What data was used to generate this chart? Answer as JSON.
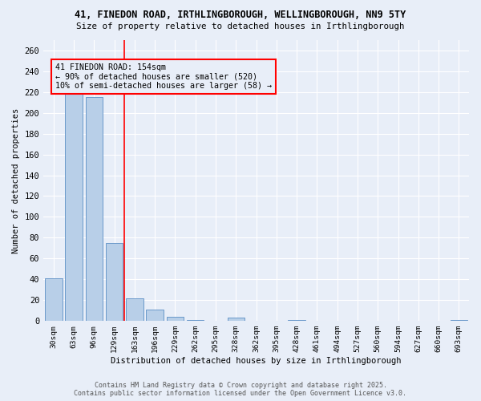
{
  "title_line1": "41, FINEDON ROAD, IRTHLINGBOROUGH, WELLINGBOROUGH, NN9 5TY",
  "title_line2": "Size of property relative to detached houses in Irthlingborough",
  "xlabel": "Distribution of detached houses by size in Irthlingborough",
  "ylabel": "Number of detached properties",
  "categories": [
    "30sqm",
    "63sqm",
    "96sqm",
    "129sqm",
    "163sqm",
    "196sqm",
    "229sqm",
    "262sqm",
    "295sqm",
    "328sqm",
    "362sqm",
    "395sqm",
    "428sqm",
    "461sqm",
    "494sqm",
    "527sqm",
    "560sqm",
    "594sqm",
    "627sqm",
    "660sqm",
    "693sqm"
  ],
  "values": [
    41,
    218,
    215,
    75,
    22,
    11,
    4,
    1,
    0,
    3,
    0,
    0,
    1,
    0,
    0,
    0,
    0,
    0,
    0,
    0,
    1
  ],
  "bar_color": "#b8cfe8",
  "bar_edge_color": "#5b8ec4",
  "highlight_idx": 3.5,
  "highlight_color": "red",
  "annotation_text": "41 FINEDON ROAD: 154sqm\n← 90% of detached houses are smaller (520)\n10% of semi-detached houses are larger (58) →",
  "bg_color": "#e8eef8",
  "grid_color": "#ffffff",
  "ylim": [
    0,
    270
  ],
  "yticks": [
    0,
    20,
    40,
    60,
    80,
    100,
    120,
    140,
    160,
    180,
    200,
    220,
    240,
    260
  ],
  "footer_line1": "Contains HM Land Registry data © Crown copyright and database right 2025.",
  "footer_line2": "Contains public sector information licensed under the Open Government Licence v3.0."
}
